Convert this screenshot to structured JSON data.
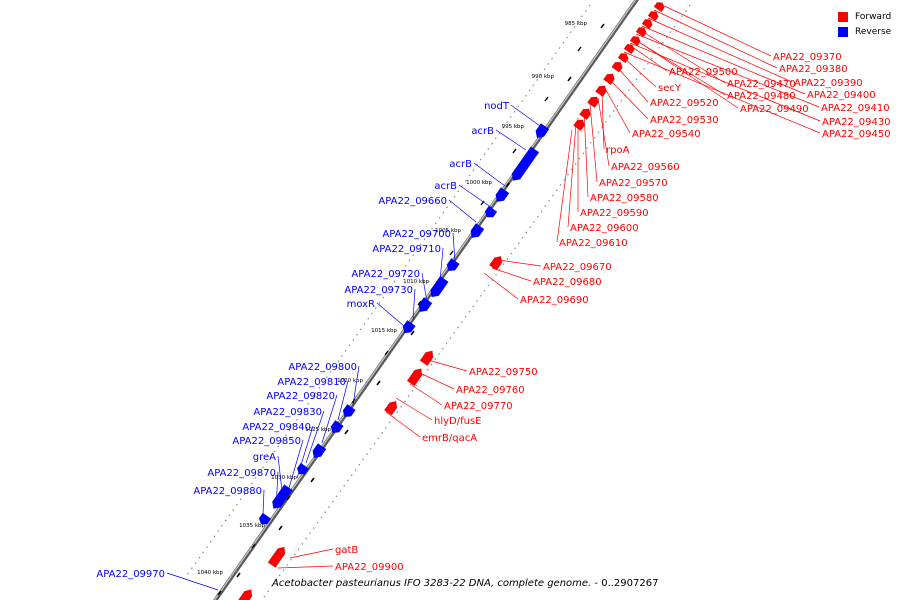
{
  "legend": [
    {
      "label": "Forward",
      "color": "#ff0000"
    },
    {
      "label": "Reverse",
      "color": "#0000ff"
    }
  ],
  "colors": {
    "forward": "#ff0000",
    "reverse": "#0000ff",
    "backbone": "#909090"
  },
  "caption": {
    "organism": "Acetobacter pasteurianus IFO 3283-22 DNA, complete genome.",
    "range": " - 0..2907267"
  },
  "ticks": [
    "985 kbp",
    "990 kbp",
    "995 kbp",
    "1000 kbp",
    "1005 kbp",
    "1010 kbp",
    "1015 kbp",
    "1020 kbp",
    "1025 kbp",
    "1030 kbp",
    "1035 kbp",
    "1040 kbp"
  ],
  "forward_labels": [
    "APA22_09370",
    "APA22_09380",
    "APA22_09390",
    "APA22_09400",
    "APA22_09410",
    "APA22_09430",
    "APA22_09450",
    "APA22_09500",
    "APA22_09470",
    "APA22_09480",
    "APA22_09490",
    "secY",
    "APA22_09520",
    "APA22_09530",
    "APA22_09540",
    "rpoA",
    "APA22_09560",
    "APA22_09570",
    "APA22_09580",
    "APA22_09590",
    "APA22_09600",
    "APA22_09610",
    "APA22_09670",
    "APA22_09680",
    "APA22_09690",
    "APA22_09750",
    "APA22_09760",
    "APA22_09770",
    "hlyD/fusE",
    "emrB/qacA",
    "gatB",
    "APA22_09900"
  ],
  "reverse_labels": [
    "nodT",
    "acrB",
    "acrB",
    "acrB",
    "APA22_09660",
    "APA22_09700",
    "APA22_09710",
    "APA22_09720",
    "APA22_09730",
    "moxR",
    "APA22_09800",
    "APA22_09810",
    "APA22_09820",
    "APA22_09830",
    "APA22_09840",
    "APA22_09850",
    "greA",
    "APA22_09870",
    "APA22_09880",
    "APA22_09970"
  ]
}
